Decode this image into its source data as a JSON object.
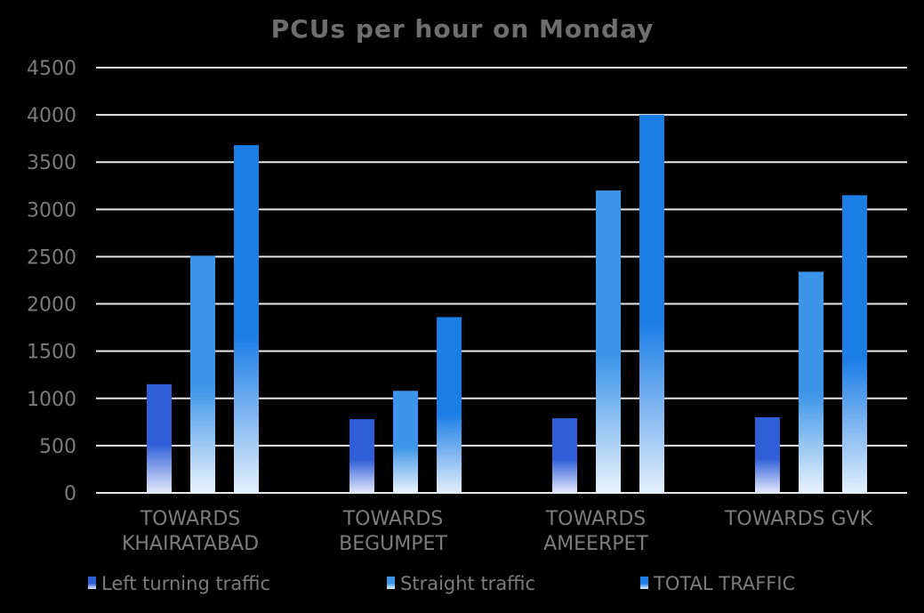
{
  "chart_data": {
    "type": "bar",
    "title": "PCUs per hour on Monday",
    "xlabel": "",
    "ylabel": "",
    "ylim": [
      0,
      4500
    ],
    "yticks": [
      0,
      500,
      1000,
      1500,
      2000,
      2500,
      3000,
      3500,
      4000,
      4500
    ],
    "grid": true,
    "legend_position": "bottom",
    "categories": [
      [
        "TOWARDS",
        "KHAIRATABAD"
      ],
      [
        "TOWARDS",
        "BEGUMPET"
      ],
      [
        "TOWARDS",
        "AMEERPET"
      ],
      [
        "TOWARDS GVK"
      ]
    ],
    "series": [
      {
        "name": "Left turning traffic",
        "values": [
          1150,
          780,
          790,
          800
        ],
        "color": "#2f5fd8",
        "fade": "#e4eafb"
      },
      {
        "name": "Straight traffic",
        "values": [
          2510,
          1080,
          3200,
          2340
        ],
        "color": "#3c95e8",
        "fade": "#eaf3fc"
      },
      {
        "name": "TOTAL TRAFFIC",
        "values": [
          3680,
          1860,
          4000,
          3150
        ],
        "color": "#1b7de6",
        "fade": "#e3effc"
      }
    ]
  }
}
